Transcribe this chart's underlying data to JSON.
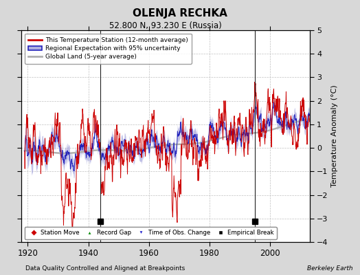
{
  "title": "OLENJA RECHKA",
  "subtitle": "52.800 N, 93.230 E (Russia)",
  "ylabel": "Temperature Anomaly (°C)",
  "xlabel_note": "Data Quality Controlled and Aligned at Breakpoints",
  "credit": "Berkeley Earth",
  "ylim": [
    -4,
    5
  ],
  "xlim": [
    1918,
    2013
  ],
  "yticks": [
    -4,
    -3,
    -2,
    -1,
    0,
    1,
    2,
    3,
    4,
    5
  ],
  "xticks": [
    1920,
    1940,
    1960,
    1980,
    2000
  ],
  "background_color": "#d8d8d8",
  "plot_bg_color": "#ffffff",
  "grid_color": "#c0c0c0",
  "station_color": "#cc0000",
  "regional_color": "#2222bb",
  "regional_fill_color": "#b0b0e0",
  "global_color": "#b0b0b0",
  "empirical_break_years": [
    1944,
    1995
  ],
  "vertical_line_years": [
    1944,
    1995
  ],
  "seed": 99
}
